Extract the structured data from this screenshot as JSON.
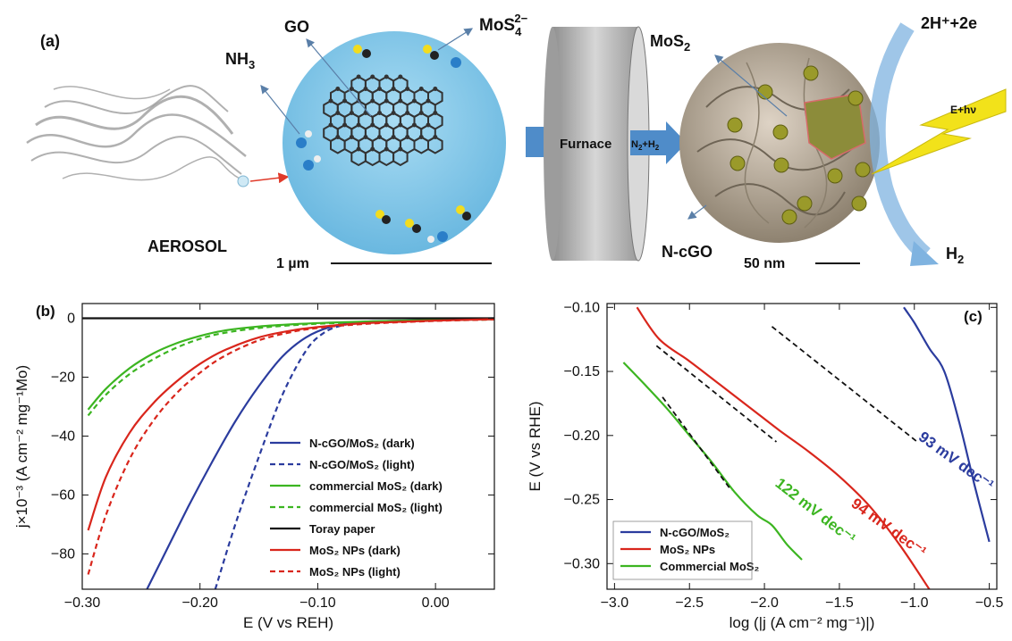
{
  "scheme": {
    "panel_letter": "(a)",
    "aerosol_label": "AEROSOL",
    "nh3_label": "NH3",
    "go_label": "GO",
    "mos4_label": "MoS4 2−",
    "scalebar_1_label": "1 µm",
    "furnace_label": "Furnace",
    "gas_label": "N2+H2",
    "mos2_label": "MoS2",
    "ncgo_label": "N-cGO",
    "scalebar_2_label": "50 nm",
    "proton_label": "2H⁺+2e",
    "light_label": "E+hν",
    "h2_label": "H2",
    "colors": {
      "droplet": "#7cc4e6",
      "furnace": "#b8b8b8",
      "arrow": "#4f8cc9",
      "lightning": "#f2e21a",
      "ball": "#c4b7a6",
      "particle": "#9a9a2a"
    }
  },
  "chart_data": [
    {
      "panel": "(b)",
      "type": "line",
      "xlabel": "E (V vs REH)",
      "ylabel": "j×10⁻³ (A cm⁻² mg⁻¹Mo)",
      "xlim": [
        -0.3,
        0.05
      ],
      "ylim": [
        -92,
        5
      ],
      "xticks": [
        -0.3,
        -0.2,
        -0.1,
        0.0
      ],
      "xtick_labels": [
        "−0.30",
        "−0.20",
        "−0.10",
        "0.00"
      ],
      "yticks": [
        0,
        -20,
        -40,
        -60,
        -80
      ],
      "ytick_labels": [
        "0",
        "−20",
        "−40",
        "−60",
        "−80"
      ],
      "legend_position": "lower-right",
      "series": [
        {
          "name": "N-cGO/MoS₂ (dark)",
          "color": "#2b3c9e",
          "dash": "solid",
          "x": [
            -0.245,
            -0.23,
            -0.21,
            -0.19,
            -0.17,
            -0.15,
            -0.13,
            -0.11,
            -0.09,
            -0.07,
            -0.05,
            0.0,
            0.05
          ],
          "y": [
            -92,
            -80,
            -64,
            -49,
            -35,
            -23,
            -13,
            -6.5,
            -3,
            -1.5,
            -1,
            -0.5,
            0
          ]
        },
        {
          "name": "N-cGO/MoS₂ (light)",
          "color": "#2b3c9e",
          "dash": "dashed",
          "x": [
            -0.187,
            -0.17,
            -0.15,
            -0.13,
            -0.11,
            -0.095,
            -0.08,
            -0.06,
            -0.04,
            0.0,
            0.05
          ],
          "y": [
            -92,
            -70,
            -47,
            -26,
            -11,
            -5,
            -2.5,
            -1.5,
            -1,
            -0.6,
            -0.3
          ]
        },
        {
          "name": "commercial MoS₂ (dark)",
          "color": "#3cb521",
          "dash": "solid",
          "x": [
            -0.295,
            -0.28,
            -0.26,
            -0.24,
            -0.22,
            -0.2,
            -0.18,
            -0.15,
            -0.12,
            -0.09,
            -0.05,
            0.0,
            0.05
          ],
          "y": [
            -31,
            -24,
            -17,
            -12,
            -8.5,
            -6,
            -4.2,
            -2.8,
            -2,
            -1.5,
            -1,
            -0.6,
            -0.3
          ]
        },
        {
          "name": "commercial MoS₂ (light)",
          "color": "#3cb521",
          "dash": "dashed",
          "x": [
            -0.295,
            -0.28,
            -0.26,
            -0.24,
            -0.22,
            -0.2,
            -0.18,
            -0.15,
            -0.12,
            -0.09,
            -0.05,
            0.0,
            0.05
          ],
          "y": [
            -33,
            -26,
            -19,
            -14,
            -10,
            -7,
            -5,
            -3.3,
            -2.3,
            -1.7,
            -1.2,
            -0.8,
            -0.4
          ]
        },
        {
          "name": "Toray paper",
          "color": "#111111",
          "dash": "solid",
          "x": [
            -0.3,
            0.05
          ],
          "y": [
            0,
            0
          ]
        },
        {
          "name": "MoS₂ NPs (dark)",
          "color": "#d9261c",
          "dash": "solid",
          "x": [
            -0.295,
            -0.28,
            -0.26,
            -0.24,
            -0.22,
            -0.2,
            -0.18,
            -0.15,
            -0.12,
            -0.1,
            -0.08,
            -0.05,
            0.0,
            0.05
          ],
          "y": [
            -72,
            -54,
            -39,
            -29,
            -21.5,
            -15.5,
            -11,
            -6.5,
            -4,
            -3,
            -2.2,
            -1.5,
            -0.8,
            -0.3
          ]
        },
        {
          "name": "MoS₂ NPs (light)",
          "color": "#d9261c",
          "dash": "dashed",
          "x": [
            -0.295,
            -0.28,
            -0.26,
            -0.24,
            -0.22,
            -0.2,
            -0.18,
            -0.15,
            -0.12,
            -0.1,
            -0.08,
            -0.05,
            0.0,
            0.05
          ],
          "y": [
            -87,
            -67,
            -48,
            -35,
            -25.5,
            -18.5,
            -13,
            -7.5,
            -4.5,
            -3.3,
            -2.5,
            -1.7,
            -0.9,
            -0.4
          ]
        }
      ]
    },
    {
      "panel": "(c)",
      "type": "line",
      "xlabel": "log (|j (A cm⁻² mg⁻¹)|)",
      "ylabel": "E (V vs RHE)",
      "xlim": [
        -3.05,
        -0.45
      ],
      "ylim": [
        -0.32,
        -0.097
      ],
      "xticks": [
        -3.0,
        -2.5,
        -2.0,
        -1.5,
        -1.0,
        -0.5
      ],
      "xtick_labels": [
        "−3.0",
        "−2.5",
        "−2.0",
        "−1.5",
        "−1.0",
        "−0.5"
      ],
      "yticks": [
        -0.1,
        -0.15,
        -0.2,
        -0.25,
        -0.3
      ],
      "ytick_labels": [
        "−0.10",
        "−0.15",
        "−0.20",
        "−0.25",
        "−0.30"
      ],
      "legend_position": "lower-left",
      "series": [
        {
          "name": "N-cGO/MoS₂",
          "color": "#2b3c9e",
          "dash": "solid",
          "x": [
            -1.07,
            -1.0,
            -0.9,
            -0.8,
            -0.7,
            -0.6,
            -0.5
          ],
          "y": [
            -0.1,
            -0.112,
            -0.132,
            -0.15,
            -0.19,
            -0.238,
            -0.283
          ]
        },
        {
          "name": "MoS₂ NPs",
          "color": "#d9261c",
          "dash": "solid",
          "x": [
            -2.85,
            -2.7,
            -2.5,
            -2.3,
            -2.1,
            -1.9,
            -1.7,
            -1.5,
            -1.3,
            -1.1,
            -0.9
          ],
          "y": [
            -0.1,
            -0.125,
            -0.142,
            -0.16,
            -0.178,
            -0.196,
            -0.213,
            -0.232,
            -0.255,
            -0.285,
            -0.32
          ]
        },
        {
          "name": "Commercial MoS₂",
          "color": "#3cb521",
          "dash": "solid",
          "x": [
            -2.94,
            -2.8,
            -2.65,
            -2.5,
            -2.35,
            -2.2,
            -2.05,
            -1.95,
            -1.85,
            -1.75
          ],
          "y": [
            -0.143,
            -0.16,
            -0.179,
            -0.2,
            -0.221,
            -0.244,
            -0.262,
            -0.27,
            -0.285,
            -0.297
          ]
        }
      ],
      "fits": [
        {
          "x": [
            -1.95,
            -0.98
          ],
          "y": [
            -0.115,
            -0.205
          ]
        },
        {
          "x": [
            -2.72,
            -1.92
          ],
          "y": [
            -0.13,
            -0.205
          ]
        },
        {
          "x": [
            -2.68,
            -2.22
          ],
          "y": [
            -0.17,
            -0.243
          ]
        }
      ],
      "annotations": [
        {
          "text": "93 mV dec⁻¹",
          "color": "#2b3c9e",
          "x": -0.74,
          "y": -0.223,
          "angle": 36
        },
        {
          "text": "94 mV dec⁻¹",
          "color": "#d9261c",
          "x": -1.19,
          "y": -0.275,
          "angle": 36
        },
        {
          "text": "122 mV dec⁻¹",
          "color": "#3cb521",
          "x": -1.68,
          "y": -0.262,
          "angle": 38
        }
      ]
    }
  ]
}
